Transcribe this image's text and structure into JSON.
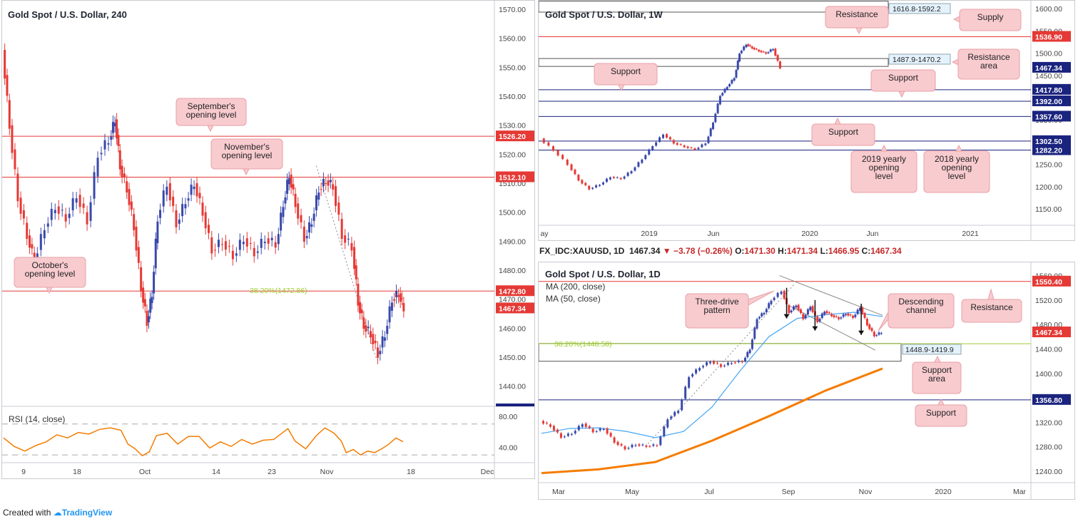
{
  "footer": {
    "created_with": "Created with",
    "brand": "TradingView"
  },
  "ohlc_bar": {
    "symbol": "FX_IDC:XAUUSD, 1D",
    "last": "1467.34",
    "arrow": "▼",
    "change": "−3.78 (−0.26%)",
    "o_label": "O:",
    "o": "1471.30",
    "h_label": "H:",
    "h": "1471.34",
    "l_label": "L:",
    "l": "1466.95",
    "c_label": "C:",
    "c": "1467.34"
  },
  "colors": {
    "up": "#3949ab",
    "down": "#e53935",
    "resistance": "#e53935",
    "support": "#1a237e",
    "callout_fill": "#f8cbcf",
    "callout_stroke": "#e8a0a6",
    "rsi": "#f57c00",
    "ma200": "#f57c00",
    "ma50": "#42a5f5",
    "fib": "#9ccc2a"
  },
  "chart_data": [
    {
      "id": "h4",
      "type": "line",
      "title": "Gold Spot / U.S. Dollar, 240",
      "yticks": [
        "1570.00",
        "1560.00",
        "1550.00",
        "1540.00",
        "1530.00",
        "1520.00",
        "1510.00",
        "1500.00",
        "1490.00",
        "1480.00",
        "1470.00",
        "1460.00",
        "1450.00",
        "1440.00"
      ],
      "ytick_values": [
        1570,
        1560,
        1550,
        1540,
        1530,
        1520,
        1510,
        1500,
        1490,
        1480,
        1470,
        1460,
        1450,
        1440
      ],
      "xticks": [
        "9",
        "18",
        "Oct",
        "14",
        "23",
        "Nov",
        "18",
        "Dec"
      ],
      "ylim": [
        1434,
        1571
      ],
      "close_series": [
        {
          "x": 0,
          "y": 1556
        },
        {
          "x": 10,
          "y": 1530
        },
        {
          "x": 22,
          "y": 1505
        },
        {
          "x": 35,
          "y": 1492
        },
        {
          "x": 45,
          "y": 1483
        },
        {
          "x": 60,
          "y": 1495
        },
        {
          "x": 75,
          "y": 1502
        },
        {
          "x": 90,
          "y": 1498
        },
        {
          "x": 105,
          "y": 1506
        },
        {
          "x": 120,
          "y": 1497
        },
        {
          "x": 135,
          "y": 1520
        },
        {
          "x": 150,
          "y": 1525
        },
        {
          "x": 158,
          "y": 1532
        },
        {
          "x": 165,
          "y": 1516
        },
        {
          "x": 175,
          "y": 1508
        },
        {
          "x": 185,
          "y": 1495
        },
        {
          "x": 195,
          "y": 1474
        },
        {
          "x": 203,
          "y": 1462
        },
        {
          "x": 210,
          "y": 1472
        },
        {
          "x": 218,
          "y": 1498
        },
        {
          "x": 232,
          "y": 1510
        },
        {
          "x": 245,
          "y": 1496
        },
        {
          "x": 258,
          "y": 1504
        },
        {
          "x": 270,
          "y": 1510
        },
        {
          "x": 282,
          "y": 1500
        },
        {
          "x": 295,
          "y": 1487
        },
        {
          "x": 310,
          "y": 1490
        },
        {
          "x": 325,
          "y": 1485
        },
        {
          "x": 340,
          "y": 1491
        },
        {
          "x": 355,
          "y": 1486
        },
        {
          "x": 370,
          "y": 1491
        },
        {
          "x": 385,
          "y": 1489
        },
        {
          "x": 395,
          "y": 1503
        },
        {
          "x": 403,
          "y": 1513
        },
        {
          "x": 412,
          "y": 1503
        },
        {
          "x": 425,
          "y": 1491
        },
        {
          "x": 435,
          "y": 1497
        },
        {
          "x": 445,
          "y": 1508
        },
        {
          "x": 455,
          "y": 1511
        },
        {
          "x": 465,
          "y": 1509
        },
        {
          "x": 478,
          "y": 1492
        },
        {
          "x": 492,
          "y": 1488
        },
        {
          "x": 500,
          "y": 1469
        },
        {
          "x": 508,
          "y": 1461
        },
        {
          "x": 518,
          "y": 1458
        },
        {
          "x": 528,
          "y": 1451
        },
        {
          "x": 538,
          "y": 1458
        },
        {
          "x": 548,
          "y": 1470
        },
        {
          "x": 557,
          "y": 1472
        },
        {
          "x": 564,
          "y": 1467
        }
      ],
      "rsi_title": "RSI (14, close)",
      "rsi_yticks": [
        "80.00",
        "40.00"
      ],
      "rsi_ytick_values": [
        80,
        40
      ],
      "rsi_ylim": [
        20,
        90
      ],
      "rsi_levels": [
        70,
        30
      ],
      "rsi_series": [
        {
          "x": 0,
          "y": 52
        },
        {
          "x": 15,
          "y": 41
        },
        {
          "x": 30,
          "y": 35
        },
        {
          "x": 45,
          "y": 42
        },
        {
          "x": 60,
          "y": 47
        },
        {
          "x": 75,
          "y": 56
        },
        {
          "x": 90,
          "y": 52
        },
        {
          "x": 105,
          "y": 59
        },
        {
          "x": 120,
          "y": 57
        },
        {
          "x": 135,
          "y": 63
        },
        {
          "x": 150,
          "y": 65
        },
        {
          "x": 165,
          "y": 62
        },
        {
          "x": 175,
          "y": 44
        },
        {
          "x": 185,
          "y": 38
        },
        {
          "x": 195,
          "y": 29
        },
        {
          "x": 205,
          "y": 34
        },
        {
          "x": 215,
          "y": 55
        },
        {
          "x": 230,
          "y": 58
        },
        {
          "x": 245,
          "y": 44
        },
        {
          "x": 260,
          "y": 54
        },
        {
          "x": 275,
          "y": 54
        },
        {
          "x": 290,
          "y": 39
        },
        {
          "x": 305,
          "y": 47
        },
        {
          "x": 320,
          "y": 41
        },
        {
          "x": 335,
          "y": 50
        },
        {
          "x": 350,
          "y": 44
        },
        {
          "x": 365,
          "y": 49
        },
        {
          "x": 380,
          "y": 50
        },
        {
          "x": 390,
          "y": 57
        },
        {
          "x": 400,
          "y": 64
        },
        {
          "x": 410,
          "y": 48
        },
        {
          "x": 425,
          "y": 38
        },
        {
          "x": 440,
          "y": 55
        },
        {
          "x": 452,
          "y": 65
        },
        {
          "x": 465,
          "y": 58
        },
        {
          "x": 475,
          "y": 48
        },
        {
          "x": 482,
          "y": 33
        },
        {
          "x": 492,
          "y": 37
        },
        {
          "x": 502,
          "y": 30
        },
        {
          "x": 512,
          "y": 35
        },
        {
          "x": 522,
          "y": 33
        },
        {
          "x": 532,
          "y": 38
        },
        {
          "x": 542,
          "y": 44
        },
        {
          "x": 552,
          "y": 52
        },
        {
          "x": 562,
          "y": 47
        }
      ],
      "levels": [
        {
          "value": 1526.2,
          "label": "1526.20",
          "kind": "resistance"
        },
        {
          "value": 1512.1,
          "label": "1512.10",
          "kind": "resistance"
        },
        {
          "value": 1472.8,
          "label": "1472.80",
          "kind": "resistance"
        },
        {
          "value": 1467.34,
          "label": "1467.34",
          "kind": "current"
        }
      ],
      "fib": {
        "label": "38.20%(1472.86)",
        "value": 1472.86
      },
      "callouts": [
        "September's",
        "opening level",
        "November's",
        "opening level",
        "October's",
        "opening level"
      ]
    },
    {
      "id": "w1",
      "type": "line",
      "title": "Gold Spot / U.S. Dollar, 1W",
      "yticks": [
        "1600.00",
        "1550.00",
        "1500.00",
        "1450.00",
        "1400.00",
        "1350.00",
        "1300.00",
        "1250.00",
        "1200.00",
        "1150.00"
      ],
      "ytick_values": [
        1600,
        1550,
        1500,
        1450,
        1400,
        1350,
        1300,
        1250,
        1200,
        1150
      ],
      "xticks": [
        "ay",
        "2019",
        "Jun",
        "2020",
        "Jun",
        "2021"
      ],
      "ylim": [
        1118,
        1605
      ],
      "close_series": [
        {
          "x": 0,
          "y": 1308
        },
        {
          "x": 20,
          "y": 1282
        },
        {
          "x": 40,
          "y": 1250
        },
        {
          "x": 55,
          "y": 1215
        },
        {
          "x": 70,
          "y": 1195
        },
        {
          "x": 85,
          "y": 1205
        },
        {
          "x": 100,
          "y": 1222
        },
        {
          "x": 115,
          "y": 1218
        },
        {
          "x": 130,
          "y": 1236
        },
        {
          "x": 145,
          "y": 1262
        },
        {
          "x": 160,
          "y": 1292
        },
        {
          "x": 175,
          "y": 1318
        },
        {
          "x": 190,
          "y": 1298
        },
        {
          "x": 205,
          "y": 1290
        },
        {
          "x": 220,
          "y": 1284
        },
        {
          "x": 235,
          "y": 1298
        },
        {
          "x": 245,
          "y": 1345
        },
        {
          "x": 255,
          "y": 1405
        },
        {
          "x": 265,
          "y": 1425
        },
        {
          "x": 275,
          "y": 1445
        },
        {
          "x": 282,
          "y": 1500
        },
        {
          "x": 292,
          "y": 1520
        },
        {
          "x": 300,
          "y": 1512
        },
        {
          "x": 310,
          "y": 1505
        },
        {
          "x": 320,
          "y": 1500
        },
        {
          "x": 330,
          "y": 1510
        },
        {
          "x": 340,
          "y": 1467
        }
      ],
      "levels": [
        {
          "value": 1536.9,
          "label": "1536.90",
          "kind": "resistance"
        },
        {
          "value": 1467.34,
          "label": "1467.34",
          "kind": "current"
        },
        {
          "value": 1417.8,
          "label": "1417.80",
          "kind": "support"
        },
        {
          "value": 1392.0,
          "label": "1392.00",
          "kind": "support"
        },
        {
          "value": 1357.6,
          "label": "1357.60",
          "kind": "support"
        },
        {
          "value": 1302.5,
          "label": "1302.50",
          "kind": "support"
        },
        {
          "value": 1282.2,
          "label": "1282.20",
          "kind": "support"
        }
      ],
      "zones": [
        {
          "label": "1616.8-1592.2",
          "top": 1616.8,
          "bottom": 1592.2
        },
        {
          "label": "1487.9-1470.2",
          "top": 1487.9,
          "bottom": 1470.2
        }
      ],
      "callouts": [
        "Resistance",
        "Supply",
        "Resistance",
        "area",
        "Support",
        "Support",
        "Support",
        "2019 yearly",
        "opening",
        "level",
        "2018 yearly",
        "opening",
        "level"
      ]
    },
    {
      "id": "d1",
      "type": "line",
      "title": "Gold Spot / U.S. Dollar, 1D",
      "legend": [
        "MA (200, close)",
        "MA (50, close)"
      ],
      "yticks": [
        "1560.00",
        "1520.00",
        "1480.00",
        "1440.00",
        "1400.00",
        "1360.00",
        "1320.00",
        "1280.00",
        "1240.00"
      ],
      "ytick_values": [
        1560,
        1520,
        1480,
        1440,
        1400,
        1360,
        1320,
        1280,
        1240
      ],
      "xticks": [
        "Mar",
        "May",
        "Jul",
        "Sep",
        "Nov",
        "2020",
        "Mar"
      ],
      "ylim": [
        1226,
        1570
      ],
      "close_series": [
        {
          "x": 0,
          "y": 1322
        },
        {
          "x": 15,
          "y": 1314
        },
        {
          "x": 30,
          "y": 1296
        },
        {
          "x": 45,
          "y": 1302
        },
        {
          "x": 60,
          "y": 1318
        },
        {
          "x": 75,
          "y": 1305
        },
        {
          "x": 90,
          "y": 1310
        },
        {
          "x": 105,
          "y": 1288
        },
        {
          "x": 120,
          "y": 1277
        },
        {
          "x": 135,
          "y": 1284
        },
        {
          "x": 150,
          "y": 1281
        },
        {
          "x": 165,
          "y": 1283
        },
        {
          "x": 180,
          "y": 1326
        },
        {
          "x": 195,
          "y": 1340
        },
        {
          "x": 210,
          "y": 1395
        },
        {
          "x": 225,
          "y": 1410
        },
        {
          "x": 240,
          "y": 1420
        },
        {
          "x": 255,
          "y": 1412
        },
        {
          "x": 270,
          "y": 1418
        },
        {
          "x": 285,
          "y": 1420
        },
        {
          "x": 295,
          "y": 1440
        },
        {
          "x": 305,
          "y": 1490
        },
        {
          "x": 315,
          "y": 1500
        },
        {
          "x": 325,
          "y": 1520
        },
        {
          "x": 340,
          "y": 1535
        },
        {
          "x": 350,
          "y": 1500
        },
        {
          "x": 360,
          "y": 1512
        },
        {
          "x": 370,
          "y": 1490
        },
        {
          "x": 380,
          "y": 1510
        },
        {
          "x": 390,
          "y": 1485
        },
        {
          "x": 400,
          "y": 1502
        },
        {
          "x": 410,
          "y": 1495
        },
        {
          "x": 420,
          "y": 1490
        },
        {
          "x": 430,
          "y": 1498
        },
        {
          "x": 440,
          "y": 1492
        },
        {
          "x": 450,
          "y": 1508
        },
        {
          "x": 460,
          "y": 1480
        },
        {
          "x": 470,
          "y": 1462
        },
        {
          "x": 480,
          "y": 1467
        }
      ],
      "ma50": [
        {
          "x": 0,
          "y": 1302
        },
        {
          "x": 40,
          "y": 1310
        },
        {
          "x": 80,
          "y": 1311
        },
        {
          "x": 120,
          "y": 1305
        },
        {
          "x": 160,
          "y": 1295
        },
        {
          "x": 200,
          "y": 1305
        },
        {
          "x": 240,
          "y": 1345
        },
        {
          "x": 280,
          "y": 1405
        },
        {
          "x": 320,
          "y": 1460
        },
        {
          "x": 360,
          "y": 1490
        },
        {
          "x": 400,
          "y": 1496
        },
        {
          "x": 440,
          "y": 1500
        },
        {
          "x": 480,
          "y": 1493
        }
      ],
      "ma200": [
        {
          "x": 0,
          "y": 1237
        },
        {
          "x": 80,
          "y": 1243
        },
        {
          "x": 160,
          "y": 1255
        },
        {
          "x": 240,
          "y": 1290
        },
        {
          "x": 320,
          "y": 1330
        },
        {
          "x": 400,
          "y": 1372
        },
        {
          "x": 480,
          "y": 1408
        }
      ],
      "levels": [
        {
          "value": 1550.4,
          "label": "1550.40",
          "kind": "resistance"
        },
        {
          "value": 1467.34,
          "label": "1467.34",
          "kind": "current"
        },
        {
          "value": 1356.8,
          "label": "1356.80",
          "kind": "support"
        }
      ],
      "zones": [
        {
          "label": "1448.9-1419.9",
          "top": 1448.9,
          "bottom": 1419.9
        }
      ],
      "fib": {
        "label": "38.20%(1448.58)",
        "value": 1448.58
      },
      "callouts": [
        "Three-drive",
        "pattern",
        "Descending",
        "channel",
        "Resistance",
        "Support",
        "area",
        "Support"
      ]
    }
  ]
}
